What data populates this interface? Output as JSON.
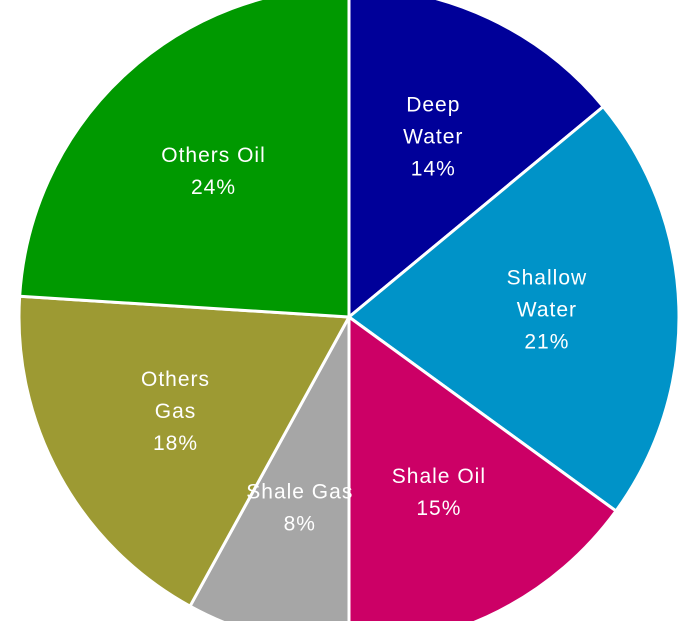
{
  "chart_data": {
    "type": "pie",
    "title": "",
    "slices": [
      {
        "label_lines": [
          "Deep",
          "Water"
        ],
        "pct_label": "14%",
        "value": 14,
        "color": "#000099"
      },
      {
        "label_lines": [
          "Shallow",
          "Water"
        ],
        "pct_label": "21%",
        "value": 21,
        "color": "#0093C8"
      },
      {
        "label_lines": [
          "Shale Oil"
        ],
        "pct_label": "15%",
        "value": 15,
        "color": "#CC0066"
      },
      {
        "label_lines": [
          "Shale Gas"
        ],
        "pct_label": "8%",
        "value": 8,
        "color": "#A6A6A6"
      },
      {
        "label_lines": [
          "Others",
          "Gas"
        ],
        "pct_label": "18%",
        "value": 18,
        "color": "#9D9A33"
      },
      {
        "label_lines": [
          "Others Oil"
        ],
        "pct_label": "24%",
        "value": 24,
        "color": "#009900"
      }
    ]
  }
}
